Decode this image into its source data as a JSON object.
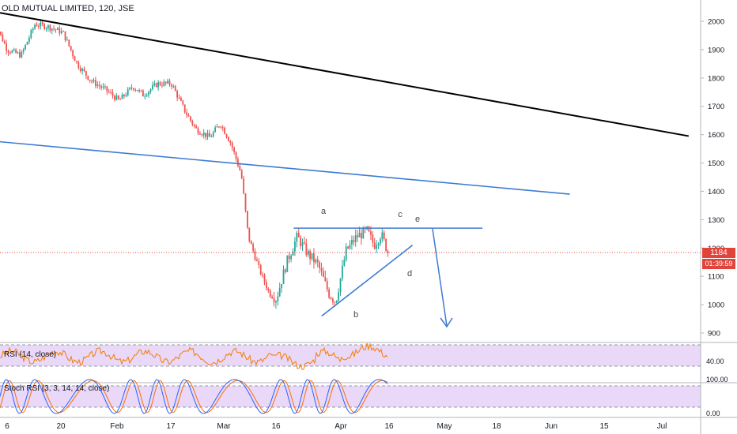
{
  "header": {
    "symbol_title": "OLD MUTUAL LIMITED, 120, JSE"
  },
  "price_axis": {
    "ticks": [
      "2000",
      "1900",
      "1800",
      "1700",
      "1600",
      "1500",
      "1400",
      "1300",
      "1200",
      "1100",
      "1000",
      "900"
    ],
    "current_price": "1184",
    "countdown": "01:39:59"
  },
  "rsi_pane": {
    "title": "RSI (14, close)",
    "value_label": "40.00"
  },
  "stoch_pane": {
    "title": "Stoch RSI (3, 3, 14, 14, close)",
    "top_label": "100.00",
    "bottom_label": "0.00"
  },
  "time_axis": {
    "labels": [
      "6",
      "20",
      "Feb",
      "17",
      "Mar",
      "16",
      "Apr",
      "16",
      "May",
      "18",
      "Jun",
      "15",
      "Jul"
    ]
  },
  "annotations": {
    "wave_labels": [
      "a",
      "b",
      "c",
      "d",
      "e"
    ]
  },
  "colors": {
    "up_candle": "#26a69a",
    "down_candle": "#ef5350",
    "blue_line": "#3d7bd1",
    "black_line": "#000000",
    "rsi_line": "#f57c00",
    "rsi_band": "#e9d8f7",
    "stoch_k": "#2962ff",
    "stoch_d": "#ff6d00",
    "price_line": "#e0443a"
  },
  "chart_data": {
    "type": "candlestick",
    "title": "OLD MUTUAL LIMITED, 120, JSE",
    "ylim": [
      880,
      2070
    ],
    "y_ticks": [
      2000,
      1900,
      1800,
      1700,
      1600,
      1500,
      1400,
      1300,
      1200,
      1100,
      1000,
      900
    ],
    "last_price": 1184,
    "close_path": [
      {
        "t": "Jan 2",
        "v": 2010
      },
      {
        "t": "Jan 6",
        "v": 1900
      },
      {
        "t": "Jan 10",
        "v": 1880
      },
      {
        "t": "Jan 14",
        "v": 1990
      },
      {
        "t": "Jan 18",
        "v": 1980
      },
      {
        "t": "Jan 22",
        "v": 1960
      },
      {
        "t": "Jan 26",
        "v": 1850
      },
      {
        "t": "Jan 30",
        "v": 1790
      },
      {
        "t": "Feb 3",
        "v": 1760
      },
      {
        "t": "Feb 7",
        "v": 1720
      },
      {
        "t": "Feb 11",
        "v": 1770
      },
      {
        "t": "Feb 14",
        "v": 1740
      },
      {
        "t": "Feb 18",
        "v": 1780
      },
      {
        "t": "Feb 22",
        "v": 1780
      },
      {
        "t": "Feb 26",
        "v": 1680
      },
      {
        "t": "Mar 1",
        "v": 1620
      },
      {
        "t": "Mar 5",
        "v": 1590
      },
      {
        "t": "Mar 8",
        "v": 1640
      },
      {
        "t": "Mar 11",
        "v": 1570
      },
      {
        "t": "Mar 14",
        "v": 1460
      },
      {
        "t": "Mar 16",
        "v": 1240
      },
      {
        "t": "Mar 19",
        "v": 1130
      },
      {
        "t": "Mar 22",
        "v": 1040
      },
      {
        "t": "Mar 24",
        "v": 1020
      },
      {
        "t": "Mar 27",
        "v": 1150
      },
      {
        "t": "Mar 30",
        "v": 1240
      },
      {
        "t": "Apr 2",
        "v": 1180
      },
      {
        "t": "Apr 5",
        "v": 1140
      },
      {
        "t": "Apr 8",
        "v": 1040
      },
      {
        "t": "Apr 10",
        "v": 1010
      },
      {
        "t": "Apr 13",
        "v": 1190
      },
      {
        "t": "Apr 16",
        "v": 1240
      },
      {
        "t": "Apr 19",
        "v": 1260
      },
      {
        "t": "Apr 21",
        "v": 1210
      },
      {
        "t": "Apr 23",
        "v": 1250
      },
      {
        "t": "Apr 25",
        "v": 1184
      }
    ],
    "trendlines": [
      {
        "name": "long-term resistance",
        "from": {
          "t": "Jan 1",
          "v": 2030
        },
        "to": {
          "t": "Jul 20",
          "v": 1595
        }
      },
      {
        "name": "support line",
        "from": {
          "t": "Jan 1",
          "v": 1575
        },
        "to": {
          "t": "Jun 16",
          "v": 1390
        }
      },
      {
        "name": "triangle top",
        "from": {
          "t": "Mar 29",
          "v": 1270
        },
        "to": {
          "t": "May 22",
          "v": 1270
        }
      },
      {
        "name": "triangle bottom",
        "from": {
          "t": "Apr 6",
          "v": 960
        },
        "to": {
          "t": "May 2",
          "v": 1210
        }
      }
    ],
    "rsi_level": 40,
    "stoch_levels": [
      0,
      100
    ]
  }
}
